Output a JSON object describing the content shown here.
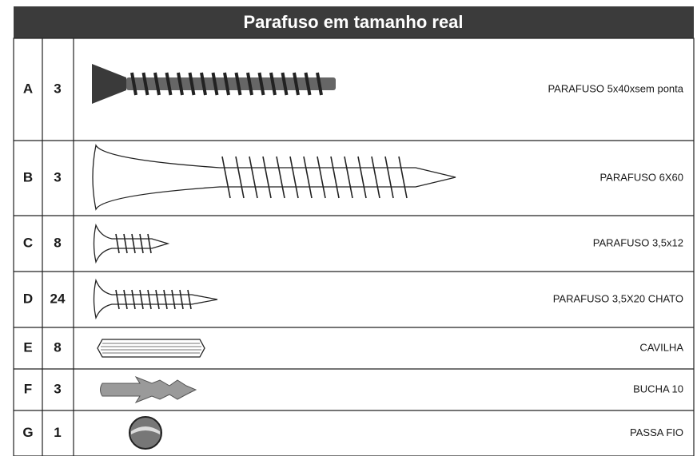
{
  "header": {
    "title": "Parafuso em tamanho real"
  },
  "table": {
    "rows": [
      [
        "A",
        3,
        "PARAFUSO 5x40xsem ponta"
      ],
      [
        "B",
        3,
        "PARAFUSO 6X60"
      ],
      [
        "C",
        8,
        "PARAFUSO 3,5x12"
      ],
      [
        "D",
        24,
        "PARAFUSO 3,5X20 CHATO"
      ],
      [
        "E",
        8,
        "CAVILHA"
      ],
      [
        "F",
        3,
        "BUCHA 10"
      ],
      [
        "G",
        1,
        "PASSA FIO"
      ]
    ]
  }
}
